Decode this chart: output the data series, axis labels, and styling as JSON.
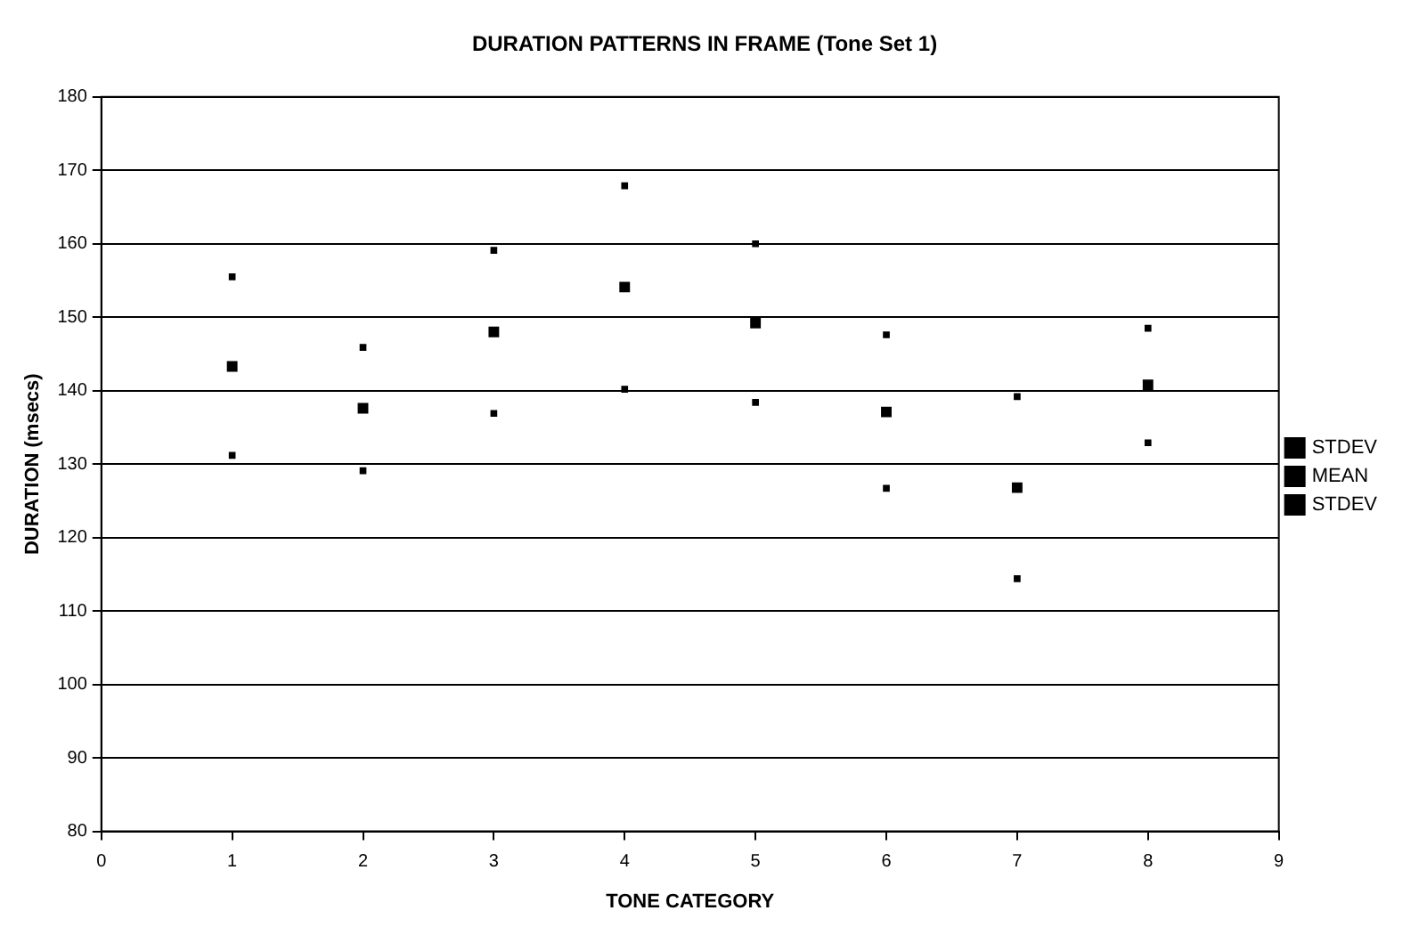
{
  "chart_data": {
    "type": "scatter",
    "title": "DURATION PATTERNS IN FRAME (Tone Set 1)",
    "xlabel": "TONE CATEGORY",
    "ylabel": "DURATION (msecs)",
    "x": [
      1,
      2,
      3,
      4,
      5,
      6,
      7,
      8
    ],
    "series": [
      {
        "name": "STDEV",
        "color": "#000000",
        "values": [
          155.5,
          145.9,
          159.1,
          167.9,
          160,
          147.6,
          139.2,
          148.5
        ]
      },
      {
        "name": "MEAN",
        "color": "#000000",
        "marker": "square",
        "values": [
          143.3,
          137.6,
          148.0,
          154.1,
          149.2,
          137.1,
          126.8,
          140.8
        ]
      },
      {
        "name": "STDEV",
        "color": "#000000",
        "values": [
          131.2,
          129.1,
          136.9,
          140.2,
          138.4,
          126.7,
          114.4,
          132.9
        ]
      }
    ],
    "xlim": [
      0,
      9
    ],
    "xticks": [
      0,
      1,
      2,
      3,
      4,
      5,
      6,
      7,
      8,
      9
    ],
    "ylim": [
      80,
      180
    ],
    "yticks": [
      80,
      90,
      100,
      110,
      120,
      130,
      140,
      150,
      160,
      170,
      180
    ],
    "grid": "y",
    "legend": "right"
  }
}
